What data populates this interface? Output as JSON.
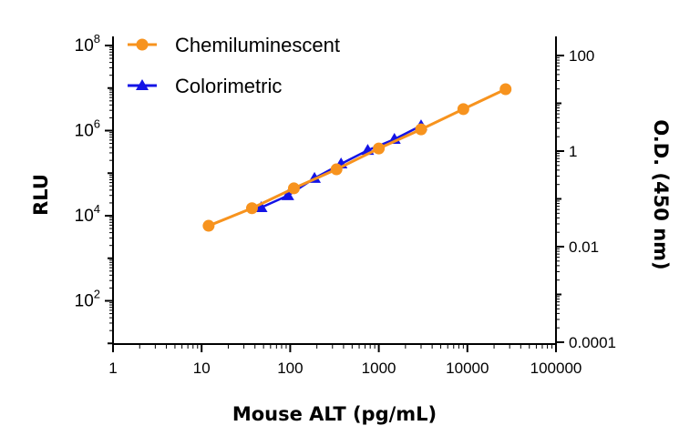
{
  "chart_data": {
    "type": "line",
    "title": "",
    "xlabel": "Mouse ALT (pg/mL)",
    "ylabel": "RLU",
    "y2label": "O.D. (450 nm)",
    "xscale": "log",
    "yscale": "log",
    "y2scale": "log",
    "xlim": [
      1,
      100000
    ],
    "ylim": [
      10,
      100000000
    ],
    "y2lim": [
      0.0001,
      200
    ],
    "x_ticks": [
      "1",
      "10",
      "100",
      "1000",
      "10000",
      "100000"
    ],
    "y_ticks": [
      {
        "base": "10",
        "exp": "2",
        "value": 100
      },
      {
        "base": "10",
        "exp": "4",
        "value": 10000
      },
      {
        "base": "10",
        "exp": "6",
        "value": 1000000
      },
      {
        "base": "10",
        "exp": "8",
        "value": 100000000
      }
    ],
    "y2_ticks": [
      "0.0001",
      "0.01",
      "1",
      "100"
    ],
    "grid": false,
    "legend_placement": "top-left",
    "series": [
      {
        "name": "Chemiluminescent",
        "axis": "left",
        "color": "#F7931E",
        "marker": "circle",
        "x": [
          12,
          37,
          110,
          333,
          1000,
          3000,
          9000,
          27000
        ],
        "y": [
          5800,
          15000,
          44000,
          123000,
          380000,
          1070000,
          3200000,
          9400000
        ]
      },
      {
        "name": "Colorimetric",
        "axis": "right",
        "color": "#1414E6",
        "marker": "triangle",
        "x": [
          47,
          94,
          188,
          375,
          750,
          1500,
          3000
        ],
        "y": [
          0.066,
          0.117,
          0.27,
          0.54,
          1.04,
          1.77,
          3.4
        ]
      }
    ]
  }
}
